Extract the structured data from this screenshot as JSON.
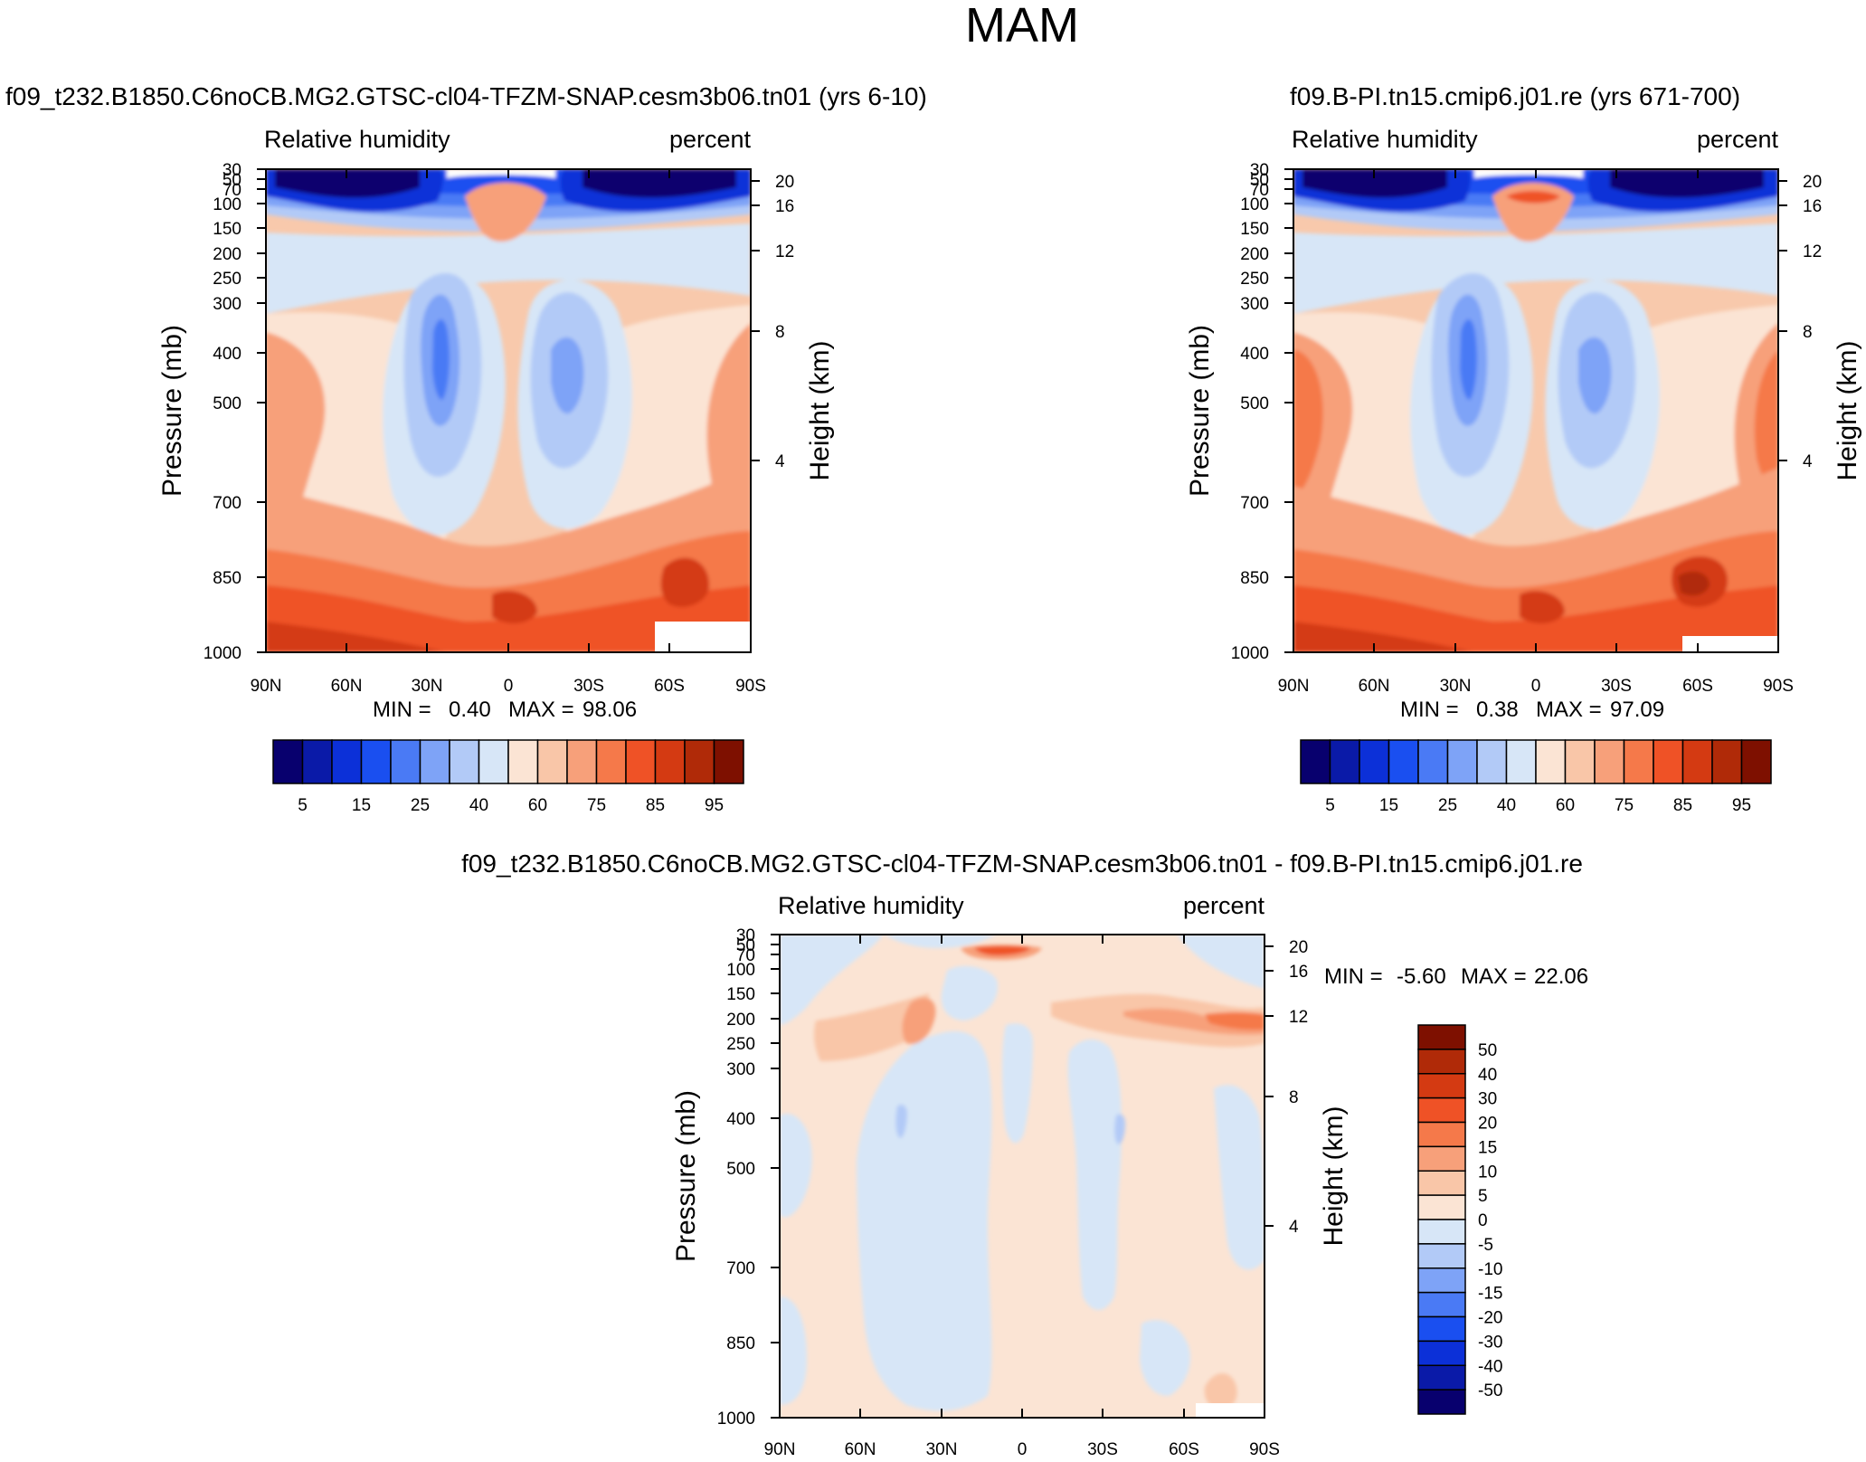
{
  "title": "MAM",
  "chart_data": [
    {
      "id": "p1",
      "type": "contour",
      "case_title": "f09_t232.B1850.C6noCB.MG2.GTSC-cl04-TFZM-SNAP.cesm3b06.tn01 (yrs 6-10)",
      "variable_label": "Relative humidity",
      "units_label": "percent",
      "ylabel": "Pressure (mb)",
      "y2label": "Height (km)",
      "x_ticks": [
        "90N",
        "60N",
        "30N",
        "0",
        "30S",
        "60S",
        "90S"
      ],
      "y_ticks": [
        "30",
        "50",
        "70",
        "100",
        "150",
        "200",
        "250",
        "300",
        "400",
        "500",
        "700",
        "850",
        "1000"
      ],
      "y2_ticks": [
        "20",
        "16",
        "12",
        "8",
        "4"
      ],
      "stats": {
        "min_label": "MIN =",
        "min": "0.40",
        "max_label": "MAX =",
        "max": "98.06"
      },
      "colorbar": {
        "labels": [
          "5",
          "15",
          "25",
          "40",
          "60",
          "75",
          "85",
          "95"
        ],
        "colors": [
          "#08006e",
          "#0a1aa8",
          "#0c30d8",
          "#1a4ff0",
          "#4a7af5",
          "#7ea3f7",
          "#b2caf7",
          "#d7e6f7",
          "#fbe4d4",
          "#f9c6a8",
          "#f7a07a",
          "#f5794a",
          "#ef5226",
          "#d43a12",
          "#b02a08",
          "#7e1000"
        ]
      }
    },
    {
      "id": "p2",
      "type": "contour",
      "case_title": "f09.B-PI.tn15.cmip6.j01.re (yrs 671-700)",
      "variable_label": "Relative humidity",
      "units_label": "percent",
      "ylabel": "Pressure (mb)",
      "y2label": "Height (km)",
      "x_ticks": [
        "90N",
        "60N",
        "30N",
        "0",
        "30S",
        "60S",
        "90S"
      ],
      "y_ticks": [
        "30",
        "50",
        "70",
        "100",
        "150",
        "200",
        "250",
        "300",
        "400",
        "500",
        "700",
        "850",
        "1000"
      ],
      "y2_ticks": [
        "20",
        "16",
        "12",
        "8",
        "4"
      ],
      "stats": {
        "min_label": "MIN =",
        "min": "0.38",
        "max_label": "MAX =",
        "max": "97.09"
      },
      "colorbar": {
        "labels": [
          "5",
          "15",
          "25",
          "40",
          "60",
          "75",
          "85",
          "95"
        ],
        "colors": [
          "#08006e",
          "#0a1aa8",
          "#0c30d8",
          "#1a4ff0",
          "#4a7af5",
          "#7ea3f7",
          "#b2caf7",
          "#d7e6f7",
          "#fbe4d4",
          "#f9c6a8",
          "#f7a07a",
          "#f5794a",
          "#ef5226",
          "#d43a12",
          "#b02a08",
          "#7e1000"
        ]
      }
    },
    {
      "id": "p3",
      "type": "contour",
      "case_title": "f09_t232.B1850.C6noCB.MG2.GTSC-cl04-TFZM-SNAP.cesm3b06.tn01 - f09.B-PI.tn15.cmip6.j01.re",
      "variable_label": "Relative humidity",
      "units_label": "percent",
      "ylabel": "Pressure (mb)",
      "y2label": "Height (km)",
      "x_ticks": [
        "90N",
        "60N",
        "30N",
        "0",
        "30S",
        "60S",
        "90S"
      ],
      "y_ticks": [
        "30",
        "50",
        "70",
        "100",
        "150",
        "200",
        "250",
        "300",
        "400",
        "500",
        "700",
        "850",
        "1000"
      ],
      "y2_ticks": [
        "20",
        "16",
        "12",
        "8",
        "4"
      ],
      "stats": {
        "min_label": "MIN =",
        "min": "-5.60",
        "max_label": "MAX =",
        "max": "22.06"
      },
      "colorbar": {
        "labels": [
          "50",
          "40",
          "30",
          "20",
          "15",
          "10",
          "5",
          "0",
          "-5",
          "-10",
          "-15",
          "-20",
          "-30",
          "-40",
          "-50"
        ],
        "colors": [
          "#7e1000",
          "#b02a08",
          "#d43a12",
          "#ef5226",
          "#f5794a",
          "#f7a07a",
          "#f9c6a8",
          "#fbe4d4",
          "#d7e6f7",
          "#b2caf7",
          "#7ea3f7",
          "#4a7af5",
          "#1a4ff0",
          "#0c30d8",
          "#0a1aa8",
          "#08006e"
        ]
      }
    }
  ]
}
